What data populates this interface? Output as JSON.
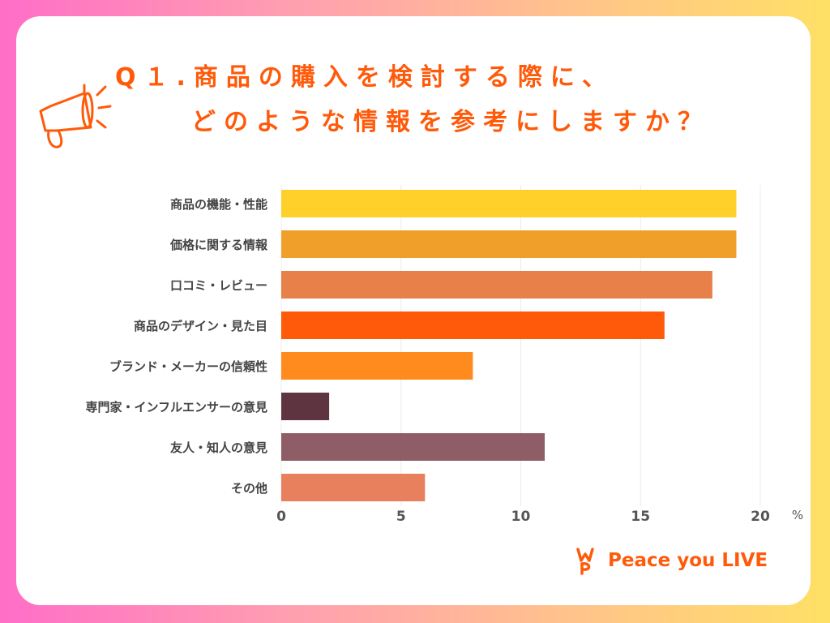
{
  "title": {
    "line1": "Q１.商品の購入を検討する際に、",
    "line2": "どのような情報を参考にしますか？"
  },
  "logo": {
    "text": "Peace you LIVE"
  },
  "colors": {
    "accent": "#ff5a0a"
  },
  "chart_data": {
    "type": "bar",
    "orientation": "horizontal",
    "categories": [
      "商品の機能・性能",
      "価格に関する情報",
      "口コミ・レビュー",
      "商品のデザイン・見た目",
      "ブランド・メーカーの信頼性",
      "専門家・インフルエンサーの意見",
      "友人・知人の意見",
      "その他"
    ],
    "values": [
      19,
      19,
      18,
      16,
      8,
      2,
      11,
      6
    ],
    "bar_colors": [
      "#ffd02a",
      "#f0a02a",
      "#e8804a",
      "#ff5a0a",
      "#ff8a1e",
      "#5e3440",
      "#8f5d66",
      "#e8805e"
    ],
    "xticks": [
      0,
      5,
      10,
      15,
      20
    ],
    "xlim": [
      0,
      20
    ],
    "unit": "%",
    "grid": true
  }
}
